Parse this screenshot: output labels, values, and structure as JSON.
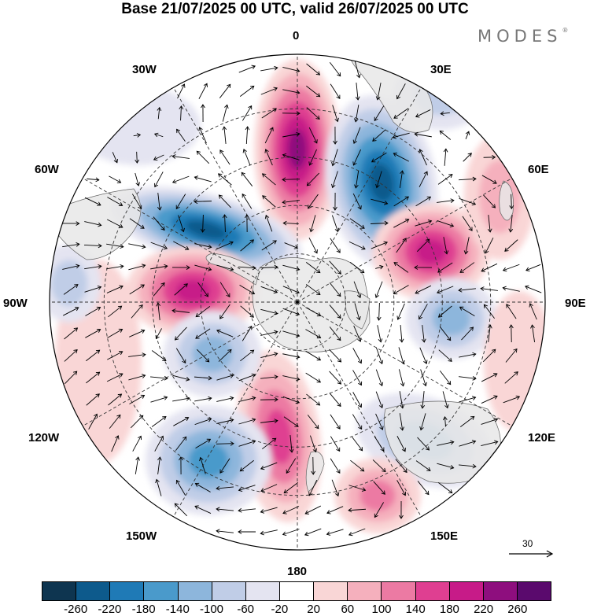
{
  "title": "Base 21/07/2025 00 UTC, valid 26/07/2025 00 UTC",
  "brand": {
    "name": "MODES",
    "mark": "®"
  },
  "map": {
    "projection": "south-polar-stereographic",
    "center_label": "0",
    "longitude_labels": {
      "lon_0": "0",
      "lon_30e": "30E",
      "lon_60e": "60E",
      "lon_90e": "90E",
      "lon_120e": "120E",
      "lon_150e": "150E",
      "lon_180": "180",
      "lon_150w": "150W",
      "lon_120w": "120W",
      "lon_90w": "90W",
      "lon_60w": "60W",
      "lon_30w": "30W"
    },
    "reference_vector": "30",
    "colors": {
      "land": "#e8e8e8",
      "grid": "#333333",
      "vector": "#000000"
    }
  },
  "colorbar": {
    "ticks": [
      "-260",
      "-220",
      "-180",
      "-140",
      "-100",
      "-60",
      "-20",
      "20",
      "60",
      "100",
      "140",
      "180",
      "220",
      "260"
    ],
    "colors": [
      "#0e3550",
      "#0d5a8c",
      "#1f7ab6",
      "#4a9acb",
      "#8db6dc",
      "#c0cde7",
      "#e4e4f1",
      "#ffffff",
      "#f9d6d6",
      "#f5b0bd",
      "#ec7aa3",
      "#df3f91",
      "#c71b88",
      "#8e0e7e",
      "#5a0a6d"
    ]
  }
}
